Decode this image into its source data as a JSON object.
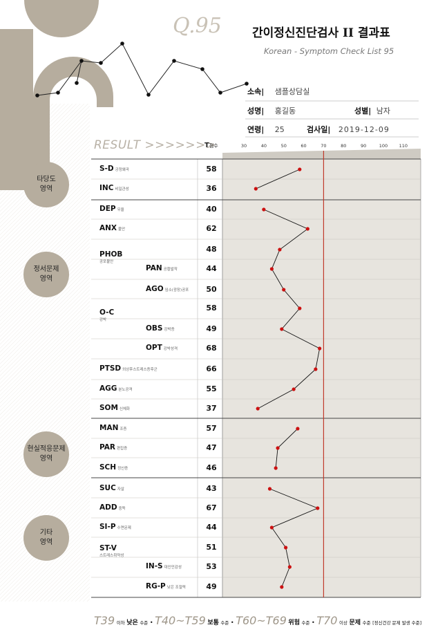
{
  "header": {
    "q_number": "Q.95",
    "title": "간이정신진단검사 II 결과표",
    "subtitle": "Korean - Symptom Check List 95"
  },
  "info": {
    "affiliation_label": "소속|",
    "affiliation": "샘플상담실",
    "name_label": "성명|",
    "name": "홍길동",
    "gender_label": "성별|",
    "gender": "남자",
    "age_label": "연령|",
    "age": "25",
    "date_label": "검사일|",
    "date": "2019-12-09"
  },
  "table_header": {
    "result_label": "RESULT >>>>>>>",
    "t_label": "T",
    "t_sub": "점수"
  },
  "domains": [
    {
      "line1": "타당도",
      "line2": "영역"
    },
    {
      "line1": "정서문제",
      "line2": "영역"
    },
    {
      "line1": "현실적응문제",
      "line2": "영역"
    },
    {
      "line1": "기타",
      "line2": "영역"
    }
  ],
  "groups": [
    {
      "code": "PHOB",
      "desc": "공포불안"
    },
    {
      "code": "O-C",
      "desc": "강박"
    },
    {
      "code": "ST-V",
      "desc": "스트레스취약성"
    }
  ],
  "rows": [
    {
      "code": "S-D",
      "desc": "긍정왜곡",
      "score": "58",
      "level": 0
    },
    {
      "code": "INC",
      "desc": "비일관성",
      "score": "36",
      "level": 0
    },
    {
      "code": "DEP",
      "desc": "우울",
      "score": "40",
      "level": 0
    },
    {
      "code": "ANX",
      "desc": "불안",
      "score": "62",
      "level": 0
    },
    {
      "code": "",
      "desc": "",
      "score": "48",
      "level": 1
    },
    {
      "code": "PAN",
      "desc": "공황발작",
      "score": "44",
      "level": 1
    },
    {
      "code": "AGO",
      "desc": "임소(광장)공포",
      "score": "50",
      "level": 1
    },
    {
      "code": "",
      "desc": "",
      "score": "58",
      "level": 1
    },
    {
      "code": "OBS",
      "desc": "강박증",
      "score": "49",
      "level": 1
    },
    {
      "code": "OPT",
      "desc": "강박성격",
      "score": "68",
      "level": 1
    },
    {
      "code": "PTSD",
      "desc": "외상후스트레스증후군",
      "score": "66",
      "level": 0
    },
    {
      "code": "AGG",
      "desc": "분노공격",
      "score": "55",
      "level": 0
    },
    {
      "code": "SOM",
      "desc": "신체화",
      "score": "37",
      "level": 0
    },
    {
      "code": "MAN",
      "desc": "조증",
      "score": "57",
      "level": 0
    },
    {
      "code": "PAR",
      "desc": "편집증",
      "score": "47",
      "level": 0
    },
    {
      "code": "SCH",
      "desc": "정신증",
      "score": "46",
      "level": 0
    },
    {
      "code": "SUC",
      "desc": "자살",
      "score": "43",
      "level": 0
    },
    {
      "code": "ADD",
      "desc": "중독",
      "score": "67",
      "level": 0
    },
    {
      "code": "SI-P",
      "desc": "수면문제",
      "score": "44",
      "level": 0
    },
    {
      "code": "",
      "desc": "",
      "score": "51",
      "level": 1
    },
    {
      "code": "IN-S",
      "desc": "대인민감성",
      "score": "53",
      "level": 1
    },
    {
      "code": "RG-P",
      "desc": "낮은 조절력",
      "score": "49",
      "level": 1
    }
  ],
  "chart_data": {
    "type": "line",
    "x_ticks": [
      "30",
      "40",
      "50",
      "60",
      "70",
      "80",
      "90",
      "100",
      "110"
    ],
    "xlim": [
      30,
      110
    ],
    "threshold": 70,
    "threshold_color": "#c0392b",
    "point_color": "#cc1111",
    "values": [
      58,
      36,
      40,
      62,
      48,
      44,
      50,
      58,
      49,
      68,
      66,
      55,
      37,
      57,
      47,
      46,
      43,
      67,
      44,
      51,
      53,
      49
    ],
    "segments": [
      [
        0,
        1
      ],
      [
        2,
        12
      ],
      [
        13,
        15
      ],
      [
        16,
        21
      ]
    ]
  },
  "legend": {
    "t39": "T39",
    "t39_a": "이하",
    "t39_b": "낮은",
    "t39_c": "수준",
    "t40": "T40~T59",
    "t40_b": "보통",
    "t40_c": "수준",
    "t60": "T60~T69",
    "t60_b": "위험",
    "t60_c": "수준",
    "t70": "T70",
    "t70_a": "이상",
    "t70_b": "문제",
    "t70_c": "수준",
    "t70_d": "[정신건강 문제 발생 수준]"
  },
  "colors": {
    "accent": "#b6ad9e",
    "chart_bg": "#e7e4de",
    "threshold": "#c0392b"
  }
}
